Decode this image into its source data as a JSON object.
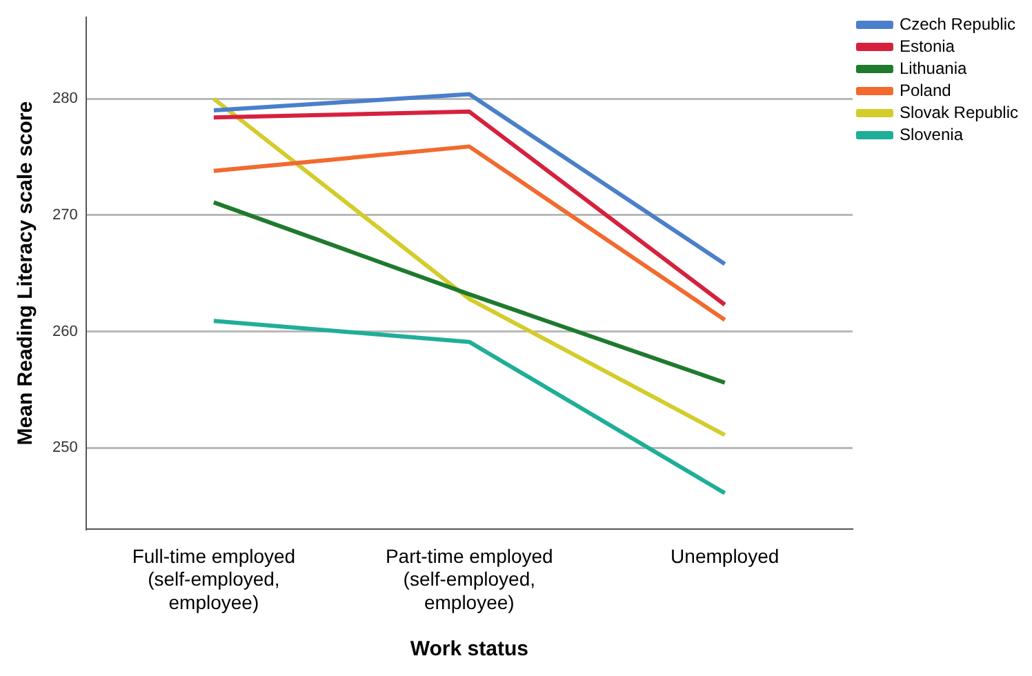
{
  "chart_data": {
    "type": "line",
    "xlabel": "Work status",
    "ylabel": "Mean Reading Literacy scale score",
    "categories": [
      "Full-time employed (self-employed, employee)",
      "Part-time employed (self-employed, employee)",
      "Unemployed"
    ],
    "series": [
      {
        "name": "Czech Republic",
        "color": "#4a7fcb",
        "values": [
          279.0,
          280.4,
          265.8
        ]
      },
      {
        "name": "Estonia",
        "color": "#d6213e",
        "values": [
          278.4,
          278.9,
          262.3
        ]
      },
      {
        "name": "Lithuania",
        "color": "#1f7a2e",
        "values": [
          271.1,
          263.2,
          255.6
        ]
      },
      {
        "name": "Poland",
        "color": "#f26a2e",
        "values": [
          273.8,
          275.9,
          261.0
        ]
      },
      {
        "name": "Slovak Republic",
        "color": "#d4cc2a",
        "values": [
          280.0,
          262.8,
          251.1
        ]
      },
      {
        "name": "Slovenia",
        "color": "#1fae98",
        "values": [
          260.9,
          259.1,
          246.1
        ]
      }
    ],
    "ylim": [
      243,
      287
    ],
    "yticks": [
      250,
      260,
      270,
      280
    ],
    "grid": "y",
    "legend": "top right",
    "marker": "none",
    "line_style": "solid"
  }
}
